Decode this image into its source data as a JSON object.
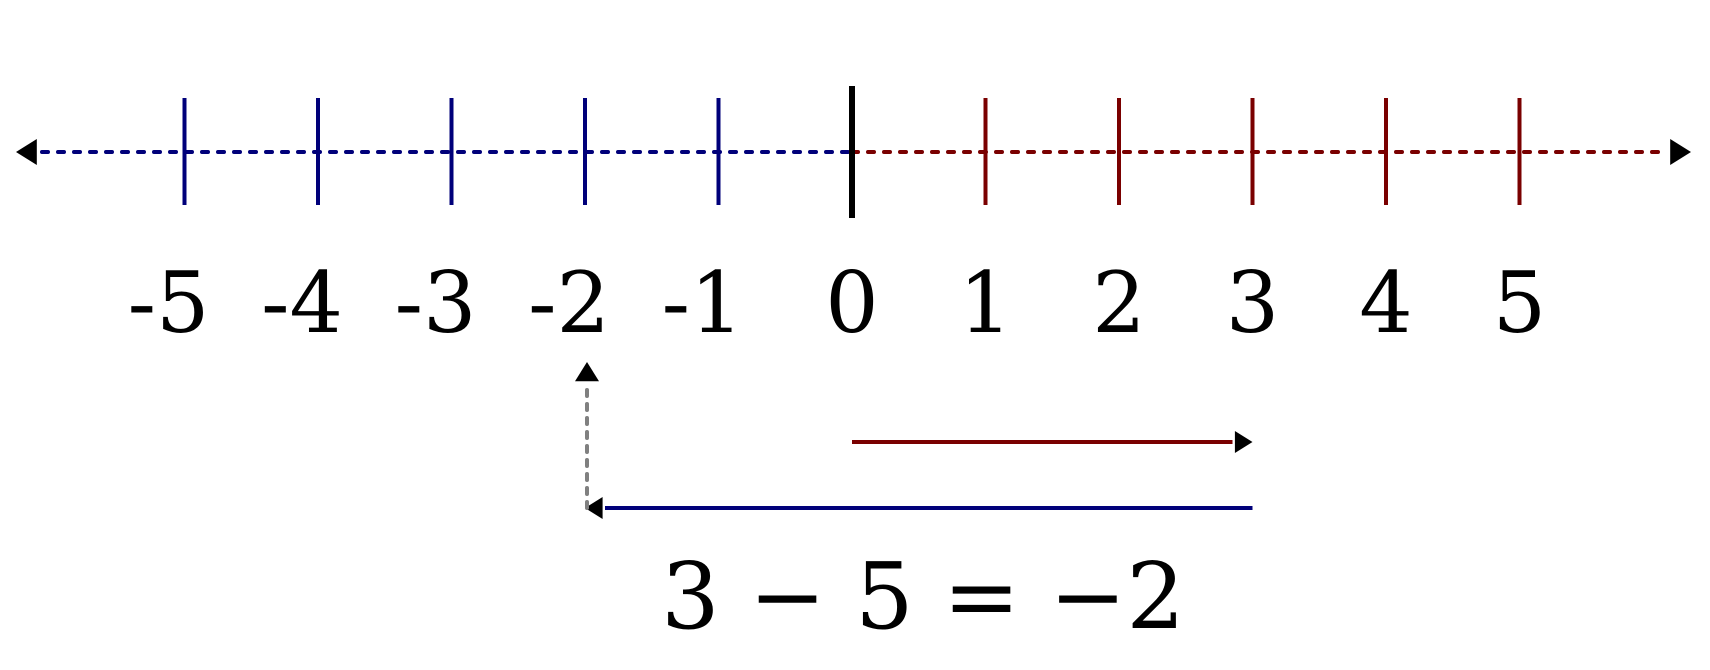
{
  "number_line": {
    "ticks": [
      "-5",
      "-4",
      "-3",
      "-2",
      "-1",
      "0",
      "1",
      "2",
      "3",
      "4",
      "5"
    ],
    "negative_color": "#00007a",
    "positive_color": "#7a0000",
    "zero_color": "#000000"
  },
  "arrows": {
    "first_move": {
      "from": 0,
      "to": 3,
      "color": "#7a0000"
    },
    "second_move": {
      "from": 3,
      "to": -2,
      "color": "#00007a"
    },
    "result_pointer": {
      "at": -2,
      "color": "#808080"
    }
  },
  "equation": "3 − 5 = −2"
}
